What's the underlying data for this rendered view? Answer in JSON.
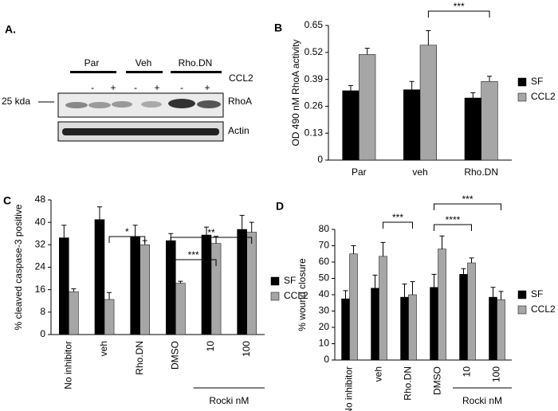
{
  "panel_labels": [
    "A.",
    "B",
    "C",
    "D"
  ],
  "blot": {
    "groups": [
      "Par",
      "Veh",
      "Rho.DN"
    ],
    "treatment": "CCL2",
    "signs": [
      "-",
      "+",
      "-",
      "+",
      "-",
      "+"
    ],
    "marker": "25 kda",
    "rows": [
      "RhoA",
      "Actin"
    ]
  },
  "chart_data": [
    {
      "type": "bar",
      "ylabel": "OD 490 nM RhoA activity",
      "categories": [
        "Par",
        "veh",
        "Rho.DN"
      ],
      "series": [
        {
          "name": "SF",
          "color": "#000000",
          "values": [
            0.335,
            0.34,
            0.3
          ],
          "errors": [
            0.025,
            0.04,
            0.025
          ]
        },
        {
          "name": "CCL2",
          "color": "#a6a6a6",
          "values": [
            0.51,
            0.555,
            0.38
          ],
          "errors": [
            0.03,
            0.07,
            0.025
          ]
        }
      ],
      "ylim": [
        0,
        0.65
      ],
      "yticks": [
        0,
        0.13,
        0.26,
        0.39,
        0.52,
        0.65
      ],
      "annotations": [
        "***"
      ]
    },
    {
      "type": "bar",
      "ylabel": "% cleaved caspase-3 positive",
      "categories": [
        "No inhibitor",
        "veh",
        "Rho.DN",
        "DMSO",
        "10",
        "100"
      ],
      "series": [
        {
          "name": "SF",
          "color": "#000000",
          "values": [
            34.5,
            41,
            35,
            33.5,
            35.5,
            37.5
          ],
          "errors": [
            4.5,
            4.5,
            4,
            2.5,
            2.8,
            5
          ]
        },
        {
          "name": "CCL2",
          "color": "#a6a6a6",
          "values": [
            15.3,
            12.5,
            32,
            18.3,
            32.5,
            36.5
          ],
          "errors": [
            1,
            2.5,
            1.5,
            0.7,
            2.5,
            3.5
          ]
        }
      ],
      "ylim": [
        0,
        48
      ],
      "yticks": [
        0,
        8,
        16,
        24,
        32,
        40,
        48
      ],
      "annotations": [
        "*",
        "***",
        "**"
      ],
      "group_label": "Rocki nM"
    },
    {
      "type": "bar",
      "ylabel": "% wound closure",
      "categories": [
        "No inhibitor",
        "veh",
        "Rho.DN",
        "DMSO",
        "10",
        "100"
      ],
      "series": [
        {
          "name": "SF",
          "color": "#000000",
          "values": [
            37.5,
            44,
            38.5,
            44.5,
            52.5,
            38.5
          ],
          "errors": [
            5,
            8,
            8,
            8,
            3.5,
            6
          ]
        },
        {
          "name": "CCL2",
          "color": "#a6a6a6",
          "values": [
            65,
            63.5,
            40,
            68,
            59.5,
            37
          ],
          "errors": [
            5,
            8.5,
            8,
            8,
            3,
            5
          ]
        }
      ],
      "ylim": [
        0,
        80
      ],
      "yticks": [
        0,
        10,
        20,
        30,
        40,
        50,
        60,
        70,
        80
      ],
      "annotations": [
        "***",
        "****",
        "***"
      ],
      "group_label": "Rocki nM"
    }
  ]
}
